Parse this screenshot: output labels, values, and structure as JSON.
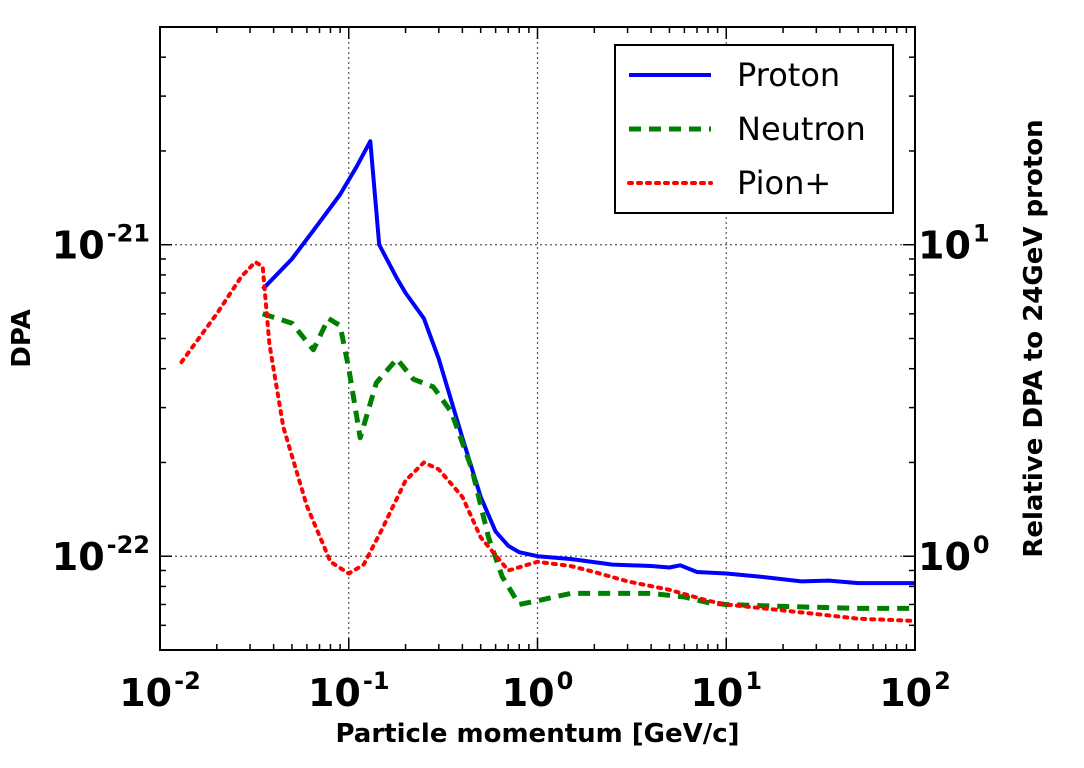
{
  "chart_data": {
    "type": "line",
    "title": "",
    "xlabel": "Particle momentum [GeV/c]",
    "ylabel": "DPA",
    "y2label": "Relative DPA to 24GeV proton",
    "xscale": "log",
    "yscale": "log",
    "xlim": [
      0.01,
      100
    ],
    "ylim": [
      5e-23,
      5e-21
    ],
    "y2lim": [
      0.5,
      50
    ],
    "grid": true,
    "legend_position": "top-right",
    "x_ticks": [
      {
        "base": "10",
        "exp": "-2",
        "value": 0.01
      },
      {
        "base": "10",
        "exp": "-1",
        "value": 0.1
      },
      {
        "base": "10",
        "exp": "0",
        "value": 1
      },
      {
        "base": "10",
        "exp": "1",
        "value": 10
      },
      {
        "base": "10",
        "exp": "2",
        "value": 100
      }
    ],
    "y_ticks": [
      {
        "base": "10",
        "exp": "-22",
        "value": 1e-22
      },
      {
        "base": "10",
        "exp": "-21",
        "value": 1e-21
      }
    ],
    "y2_ticks": [
      {
        "base": "10",
        "exp": "0",
        "value": 1
      },
      {
        "base": "10",
        "exp": "1",
        "value": 10
      }
    ],
    "series": [
      {
        "name": "Proton",
        "color": "#0000ff",
        "style": "solid",
        "x": [
          0.035,
          0.05,
          0.07,
          0.09,
          0.11,
          0.13,
          0.145,
          0.18,
          0.2,
          0.25,
          0.3,
          0.4,
          0.5,
          0.6,
          0.7,
          0.8,
          1.0,
          1.5,
          2.5,
          4,
          5,
          5.7,
          7,
          10,
          15,
          25,
          35,
          50,
          100
        ],
        "y": [
          7.2e-22,
          9e-22,
          1.18e-21,
          1.45e-21,
          1.78e-21,
          2.15e-21,
          1e-21,
          7.8e-22,
          7e-22,
          5.8e-22,
          4.3e-22,
          2.4e-22,
          1.55e-22,
          1.2e-22,
          1.08e-22,
          1.03e-22,
          1e-22,
          9.8e-23,
          9.4e-23,
          9.3e-23,
          9.2e-23,
          9.35e-23,
          8.9e-23,
          8.8e-23,
          8.6e-23,
          8.3e-23,
          8.35e-23,
          8.2e-23,
          8.2e-23
        ]
      },
      {
        "name": "Neutron",
        "color": "#008000",
        "style": "dashed",
        "x": [
          0.035,
          0.05,
          0.065,
          0.078,
          0.09,
          0.1,
          0.115,
          0.14,
          0.18,
          0.22,
          0.28,
          0.35,
          0.45,
          0.55,
          0.65,
          0.8,
          1.0,
          1.5,
          2.5,
          4,
          6,
          8,
          10,
          20,
          50,
          100
        ],
        "y": [
          6e-22,
          5.6e-22,
          4.6e-22,
          5.8e-22,
          5.5e-22,
          4e-22,
          2.4e-22,
          3.6e-22,
          4.3e-22,
          3.7e-22,
          3.5e-22,
          2.9e-22,
          1.9e-22,
          1.15e-22,
          8.6e-23,
          7e-23,
          7.2e-23,
          7.6e-23,
          7.6e-23,
          7.6e-23,
          7.4e-23,
          7.1e-23,
          7e-23,
          6.9e-23,
          6.8e-23,
          6.8e-23
        ]
      },
      {
        "name": "Pion+",
        "color": "#ff0000",
        "style": "dotted",
        "x": [
          0.013,
          0.02,
          0.027,
          0.032,
          0.035,
          0.038,
          0.045,
          0.06,
          0.08,
          0.1,
          0.12,
          0.15,
          0.2,
          0.25,
          0.3,
          0.4,
          0.5,
          0.7,
          1.0,
          1.5,
          2,
          3,
          5,
          8,
          10,
          20,
          50,
          100
        ],
        "y": [
          4.2e-22,
          6e-22,
          7.9e-22,
          8.8e-22,
          8.5e-22,
          4.8e-22,
          2.6e-22,
          1.45e-22,
          9.6e-23,
          8.8e-23,
          9.4e-23,
          1.22e-22,
          1.75e-22,
          2e-22,
          1.9e-22,
          1.55e-22,
          1.15e-22,
          9e-23,
          9.6e-23,
          9.3e-23,
          8.9e-23,
          8.3e-23,
          7.8e-23,
          7.2e-23,
          7e-23,
          6.7e-23,
          6.3e-23,
          6.2e-23
        ]
      }
    ]
  }
}
